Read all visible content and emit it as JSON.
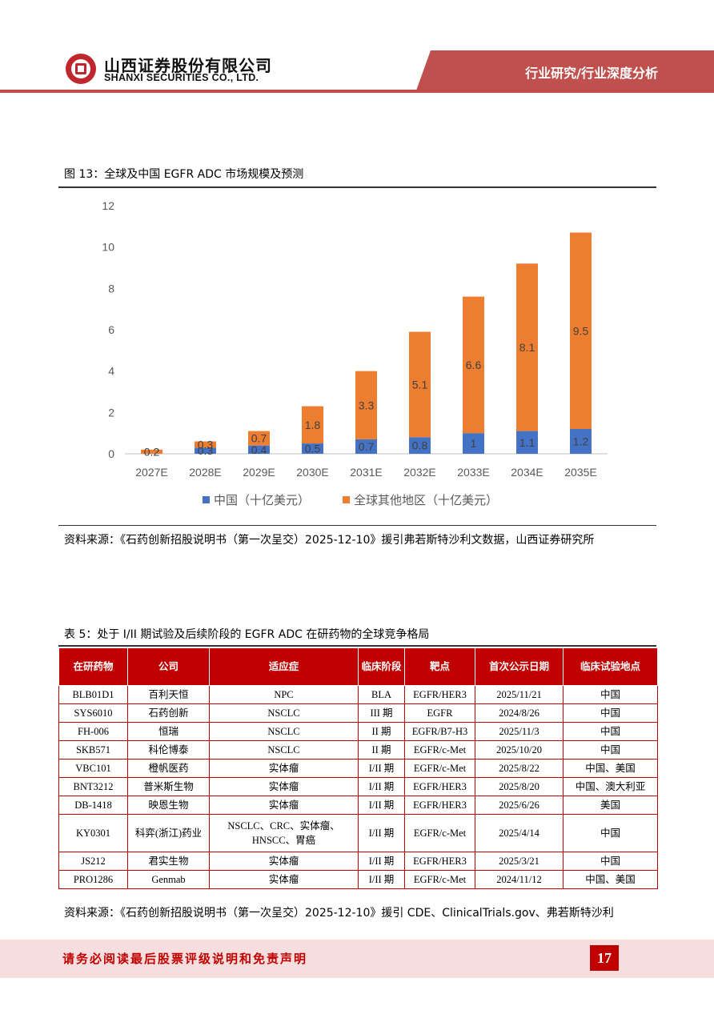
{
  "header": {
    "company_cn": "山西证券股份有限公司",
    "company_en": "SHANXI SECURITIES CO., LTD.",
    "section": "行业研究/行业深度分析",
    "logo_icon": "shanxi-securities-logo-icon"
  },
  "figure": {
    "title": "图 13：全球及中国 EGFR ADC 市场规模及预测",
    "source": "资料来源：《石药创新招股说明书（第一次呈交）2025-12-10》援引弗若斯特沙利文数据，山西证券研究所"
  },
  "chart_data": {
    "type": "bar",
    "stacked": true,
    "categories": [
      "2027E",
      "2028E",
      "2029E",
      "2030E",
      "2031E",
      "2032E",
      "2033E",
      "2034E",
      "2035E"
    ],
    "series": [
      {
        "name": "中国（十亿美元）",
        "color": "#4472c4",
        "values": [
          0,
          0.3,
          0.4,
          0.5,
          0.7,
          0.8,
          1,
          1.1,
          1.2
        ],
        "labels": [
          "",
          "0.3",
          "0.4",
          "0.5",
          "0.7",
          "0.8",
          "1",
          "1.1",
          "1.2"
        ]
      },
      {
        "name": "全球其他地区（十亿美元）",
        "color": "#ed7d31",
        "values": [
          0.2,
          0.3,
          0.7,
          1.8,
          3.3,
          5.1,
          6.6,
          8.1,
          9.5
        ],
        "labels": [
          "0.2",
          "0.3",
          "0.7",
          "1.8",
          "3.3",
          "5.1",
          "6.6",
          "8.1",
          "9.5"
        ]
      }
    ],
    "yticks": [
      "0",
      "2",
      "4",
      "6",
      "8",
      "10",
      "12"
    ],
    "ylim": [
      0,
      12
    ],
    "legend_position": "bottom",
    "grid": false
  },
  "table": {
    "title": "表 5：处于 I/II 期试验及后续阶段的 EGFR ADC 在研药物的全球竞争格局",
    "headers": [
      "在研药物",
      "公司",
      "适应症",
      "临床阶段",
      "靶点",
      "首次公示日期",
      "临床试验地点"
    ],
    "rows": [
      [
        "BLB01D1",
        "百利天恒",
        "NPC",
        "BLA",
        "EGFR/HER3",
        "2025/11/21",
        "中国"
      ],
      [
        "SYS6010",
        "石药创新",
        "NSCLC",
        "III 期",
        "EGFR",
        "2024/8/26",
        "中国"
      ],
      [
        "FH-006",
        "恒瑞",
        "NSCLC",
        "II 期",
        "EGFR/B7-H3",
        "2025/11/3",
        "中国"
      ],
      [
        "SKB571",
        "科伦博泰",
        "NSCLC",
        "II 期",
        "EGFR/c-Met",
        "2025/10/20",
        "中国"
      ],
      [
        "VBC101",
        "橙帆医药",
        "实体瘤",
        "I/II 期",
        "EGFR/c-Met",
        "2025/8/22",
        "中国、美国"
      ],
      [
        "BNT3212",
        "普米斯生物",
        "实体瘤",
        "I/II 期",
        "EGFR/HER3",
        "2025/8/20",
        "中国、澳大利亚"
      ],
      [
        "DB-1418",
        "映恩生物",
        "实体瘤",
        "I/II 期",
        "EGFR/HER3",
        "2025/6/26",
        "美国"
      ],
      [
        "KY0301",
        "科弈(浙江)药业",
        "NSCLC、CRC、实体瘤、HNSCC、胃癌",
        "I/II 期",
        "EGFR/c-Met",
        "2025/4/14",
        "中国"
      ],
      [
        "JS212",
        "君实生物",
        "实体瘤",
        "I/II 期",
        "EGFR/HER3",
        "2025/3/21",
        "中国"
      ],
      [
        "PRO1286",
        "Genmab",
        "实体瘤",
        "I/II 期",
        "EGFR/c-Met",
        "2024/11/12",
        "中国、美国"
      ]
    ],
    "source": "资料来源：《石药创新招股说明书（第一次呈交）2025-12-10》援引 CDE、ClinicalTrials.gov、弗若斯特沙利"
  },
  "footer": {
    "disclaimer": "请务必阅读最后股票评级说明和免责声明",
    "page_number": "17"
  },
  "colors": {
    "brand_red": "#c00000",
    "banner_red": "#c0504d",
    "china_blue": "#4472c4",
    "global_orange": "#ed7d31"
  }
}
